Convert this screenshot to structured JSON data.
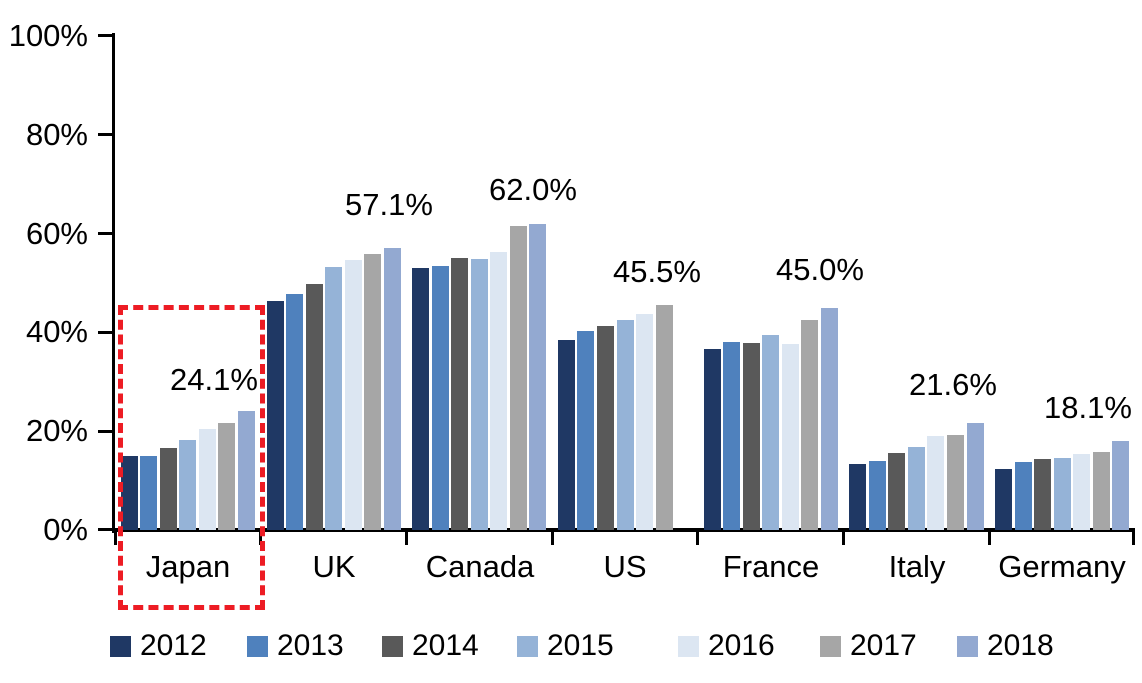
{
  "chart_data": {
    "type": "bar",
    "title": "",
    "xlabel": "",
    "ylabel": "",
    "grid": false,
    "legend_position": "bottom",
    "y_axis": {
      "min": 0,
      "max": 100,
      "tick_step": 20,
      "ticks": [
        "0%",
        "20%",
        "40%",
        "60%",
        "80%",
        "100%"
      ]
    },
    "categories": [
      "Japan",
      "UK",
      "Canada",
      "US",
      "France",
      "Italy",
      "Germany"
    ],
    "series": [
      {
        "name": "2012",
        "color": "#1F3864",
        "values": [
          14.9,
          46.3,
          53.0,
          38.4,
          36.7,
          13.3,
          12.4
        ]
      },
      {
        "name": "2013",
        "color": "#4F81BD",
        "values": [
          15.0,
          47.7,
          53.5,
          40.2,
          38.0,
          14.0,
          13.8
        ]
      },
      {
        "name": "2014",
        "color": "#595959",
        "values": [
          16.7,
          49.9,
          55.0,
          41.4,
          37.9,
          15.5,
          14.4
        ]
      },
      {
        "name": "2015",
        "color": "#95B3D7",
        "values": [
          18.3,
          53.2,
          54.8,
          42.5,
          39.5,
          16.9,
          14.6
        ]
      },
      {
        "name": "2016",
        "color": "#DCE6F2",
        "values": [
          20.4,
          54.7,
          56.2,
          43.8,
          37.6,
          19.0,
          15.4
        ]
      },
      {
        "name": "2017",
        "color": "#A6A6A6",
        "values": [
          21.7,
          55.8,
          61.6,
          45.5,
          42.5,
          19.2,
          15.8
        ]
      },
      {
        "name": "2018",
        "color": "#93A9D1",
        "values": [
          24.1,
          57.1,
          62.0,
          null,
          45.0,
          21.6,
          18.1
        ]
      }
    ],
    "data_labels": [
      {
        "category": "Japan",
        "text": "24.1%"
      },
      {
        "category": "UK",
        "text": "57.1%"
      },
      {
        "category": "Canada",
        "text": "62.0%"
      },
      {
        "category": "US",
        "text": "45.5%"
      },
      {
        "category": "France",
        "text": "45.0%"
      },
      {
        "category": "Italy",
        "text": "21.6%"
      },
      {
        "category": "Germany",
        "text": "18.1%"
      }
    ],
    "highlight": {
      "target": "Japan",
      "style": "dashed-rectangle",
      "color": "#ED1C24"
    }
  }
}
